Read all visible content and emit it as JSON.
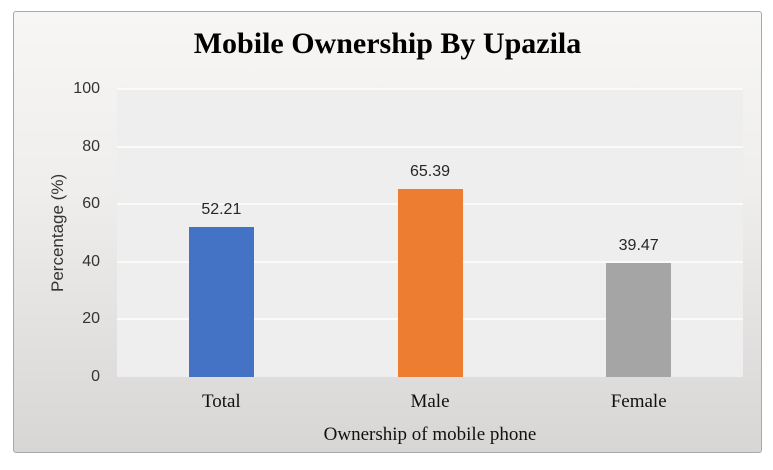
{
  "chart_data": {
    "type": "bar",
    "title": "Mobile Ownership By Upazila",
    "xlabel": "Ownership of mobile phone",
    "ylabel": "Percentage (%)",
    "categories": [
      "Total",
      "Male",
      "Female"
    ],
    "values": [
      52.21,
      65.39,
      39.47
    ],
    "data_labels": [
      "52.21",
      "65.39",
      "39.47"
    ],
    "bar_colors": [
      "#4472C4",
      "#ED7D31",
      "#A5A5A5"
    ],
    "ylim": [
      0,
      100
    ],
    "yticks": [
      0,
      20,
      40,
      60,
      80,
      100
    ],
    "grid": "horizontal-major-white",
    "legend": "none",
    "plot_bg_color": "#efeeee",
    "gridline_color": "#fafaf9",
    "chart_bg": "gradient gray top-light to bottom-dark",
    "border_color": "#a9a9a9"
  }
}
